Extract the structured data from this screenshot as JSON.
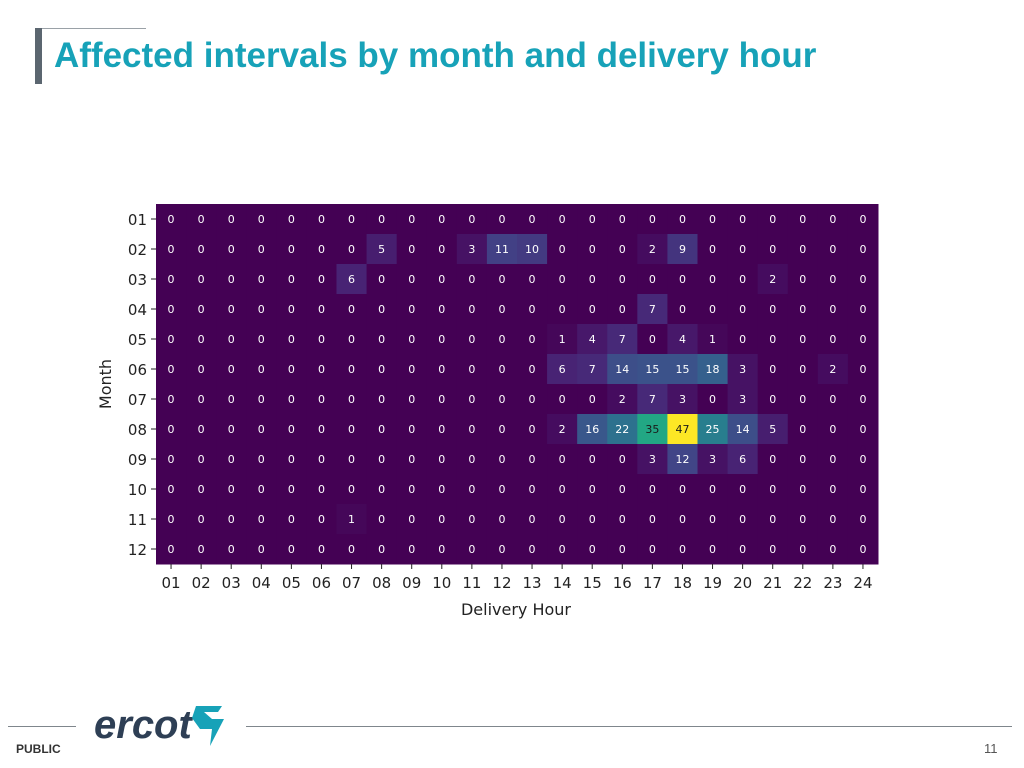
{
  "slide": {
    "title": "Affected intervals by month and delivery hour",
    "footer_classification": "PUBLIC",
    "logo_text": "ercot",
    "page_number": "11",
    "accent_color": "#17a2b8"
  },
  "chart_data": {
    "type": "heatmap",
    "colormap": "viridis",
    "xlabel": "Delivery Hour",
    "ylabel": "Month",
    "x_categories": [
      "01",
      "02",
      "03",
      "04",
      "05",
      "06",
      "07",
      "08",
      "09",
      "10",
      "11",
      "12",
      "13",
      "14",
      "15",
      "16",
      "17",
      "18",
      "19",
      "20",
      "21",
      "22",
      "23",
      "24"
    ],
    "y_categories": [
      "01",
      "02",
      "03",
      "04",
      "05",
      "06",
      "07",
      "08",
      "09",
      "10",
      "11",
      "12"
    ],
    "value_range": [
      0,
      47
    ],
    "values": [
      [
        0,
        0,
        0,
        0,
        0,
        0,
        0,
        0,
        0,
        0,
        0,
        0,
        0,
        0,
        0,
        0,
        0,
        0,
        0,
        0,
        0,
        0,
        0,
        0
      ],
      [
        0,
        0,
        0,
        0,
        0,
        0,
        0,
        5,
        0,
        0,
        3,
        11,
        10,
        0,
        0,
        0,
        2,
        9,
        0,
        0,
        0,
        0,
        0,
        0
      ],
      [
        0,
        0,
        0,
        0,
        0,
        0,
        6,
        0,
        0,
        0,
        0,
        0,
        0,
        0,
        0,
        0,
        0,
        0,
        0,
        0,
        2,
        0,
        0,
        0
      ],
      [
        0,
        0,
        0,
        0,
        0,
        0,
        0,
        0,
        0,
        0,
        0,
        0,
        0,
        0,
        0,
        0,
        7,
        0,
        0,
        0,
        0,
        0,
        0,
        0
      ],
      [
        0,
        0,
        0,
        0,
        0,
        0,
        0,
        0,
        0,
        0,
        0,
        0,
        0,
        1,
        4,
        7,
        0,
        4,
        1,
        0,
        0,
        0,
        0,
        0
      ],
      [
        0,
        0,
        0,
        0,
        0,
        0,
        0,
        0,
        0,
        0,
        0,
        0,
        0,
        6,
        7,
        14,
        15,
        15,
        18,
        3,
        0,
        0,
        2,
        0
      ],
      [
        0,
        0,
        0,
        0,
        0,
        0,
        0,
        0,
        0,
        0,
        0,
        0,
        0,
        0,
        0,
        2,
        7,
        3,
        0,
        3,
        0,
        0,
        0,
        0
      ],
      [
        0,
        0,
        0,
        0,
        0,
        0,
        0,
        0,
        0,
        0,
        0,
        0,
        0,
        2,
        16,
        22,
        35,
        47,
        25,
        14,
        5,
        0,
        0,
        0
      ],
      [
        0,
        0,
        0,
        0,
        0,
        0,
        0,
        0,
        0,
        0,
        0,
        0,
        0,
        0,
        0,
        0,
        3,
        12,
        3,
        6,
        0,
        0,
        0,
        0
      ],
      [
        0,
        0,
        0,
        0,
        0,
        0,
        0,
        0,
        0,
        0,
        0,
        0,
        0,
        0,
        0,
        0,
        0,
        0,
        0,
        0,
        0,
        0,
        0,
        0
      ],
      [
        0,
        0,
        0,
        0,
        0,
        0,
        1,
        0,
        0,
        0,
        0,
        0,
        0,
        0,
        0,
        0,
        0,
        0,
        0,
        0,
        0,
        0,
        0,
        0
      ],
      [
        0,
        0,
        0,
        0,
        0,
        0,
        0,
        0,
        0,
        0,
        0,
        0,
        0,
        0,
        0,
        0,
        0,
        0,
        0,
        0,
        0,
        0,
        0,
        0
      ]
    ]
  }
}
